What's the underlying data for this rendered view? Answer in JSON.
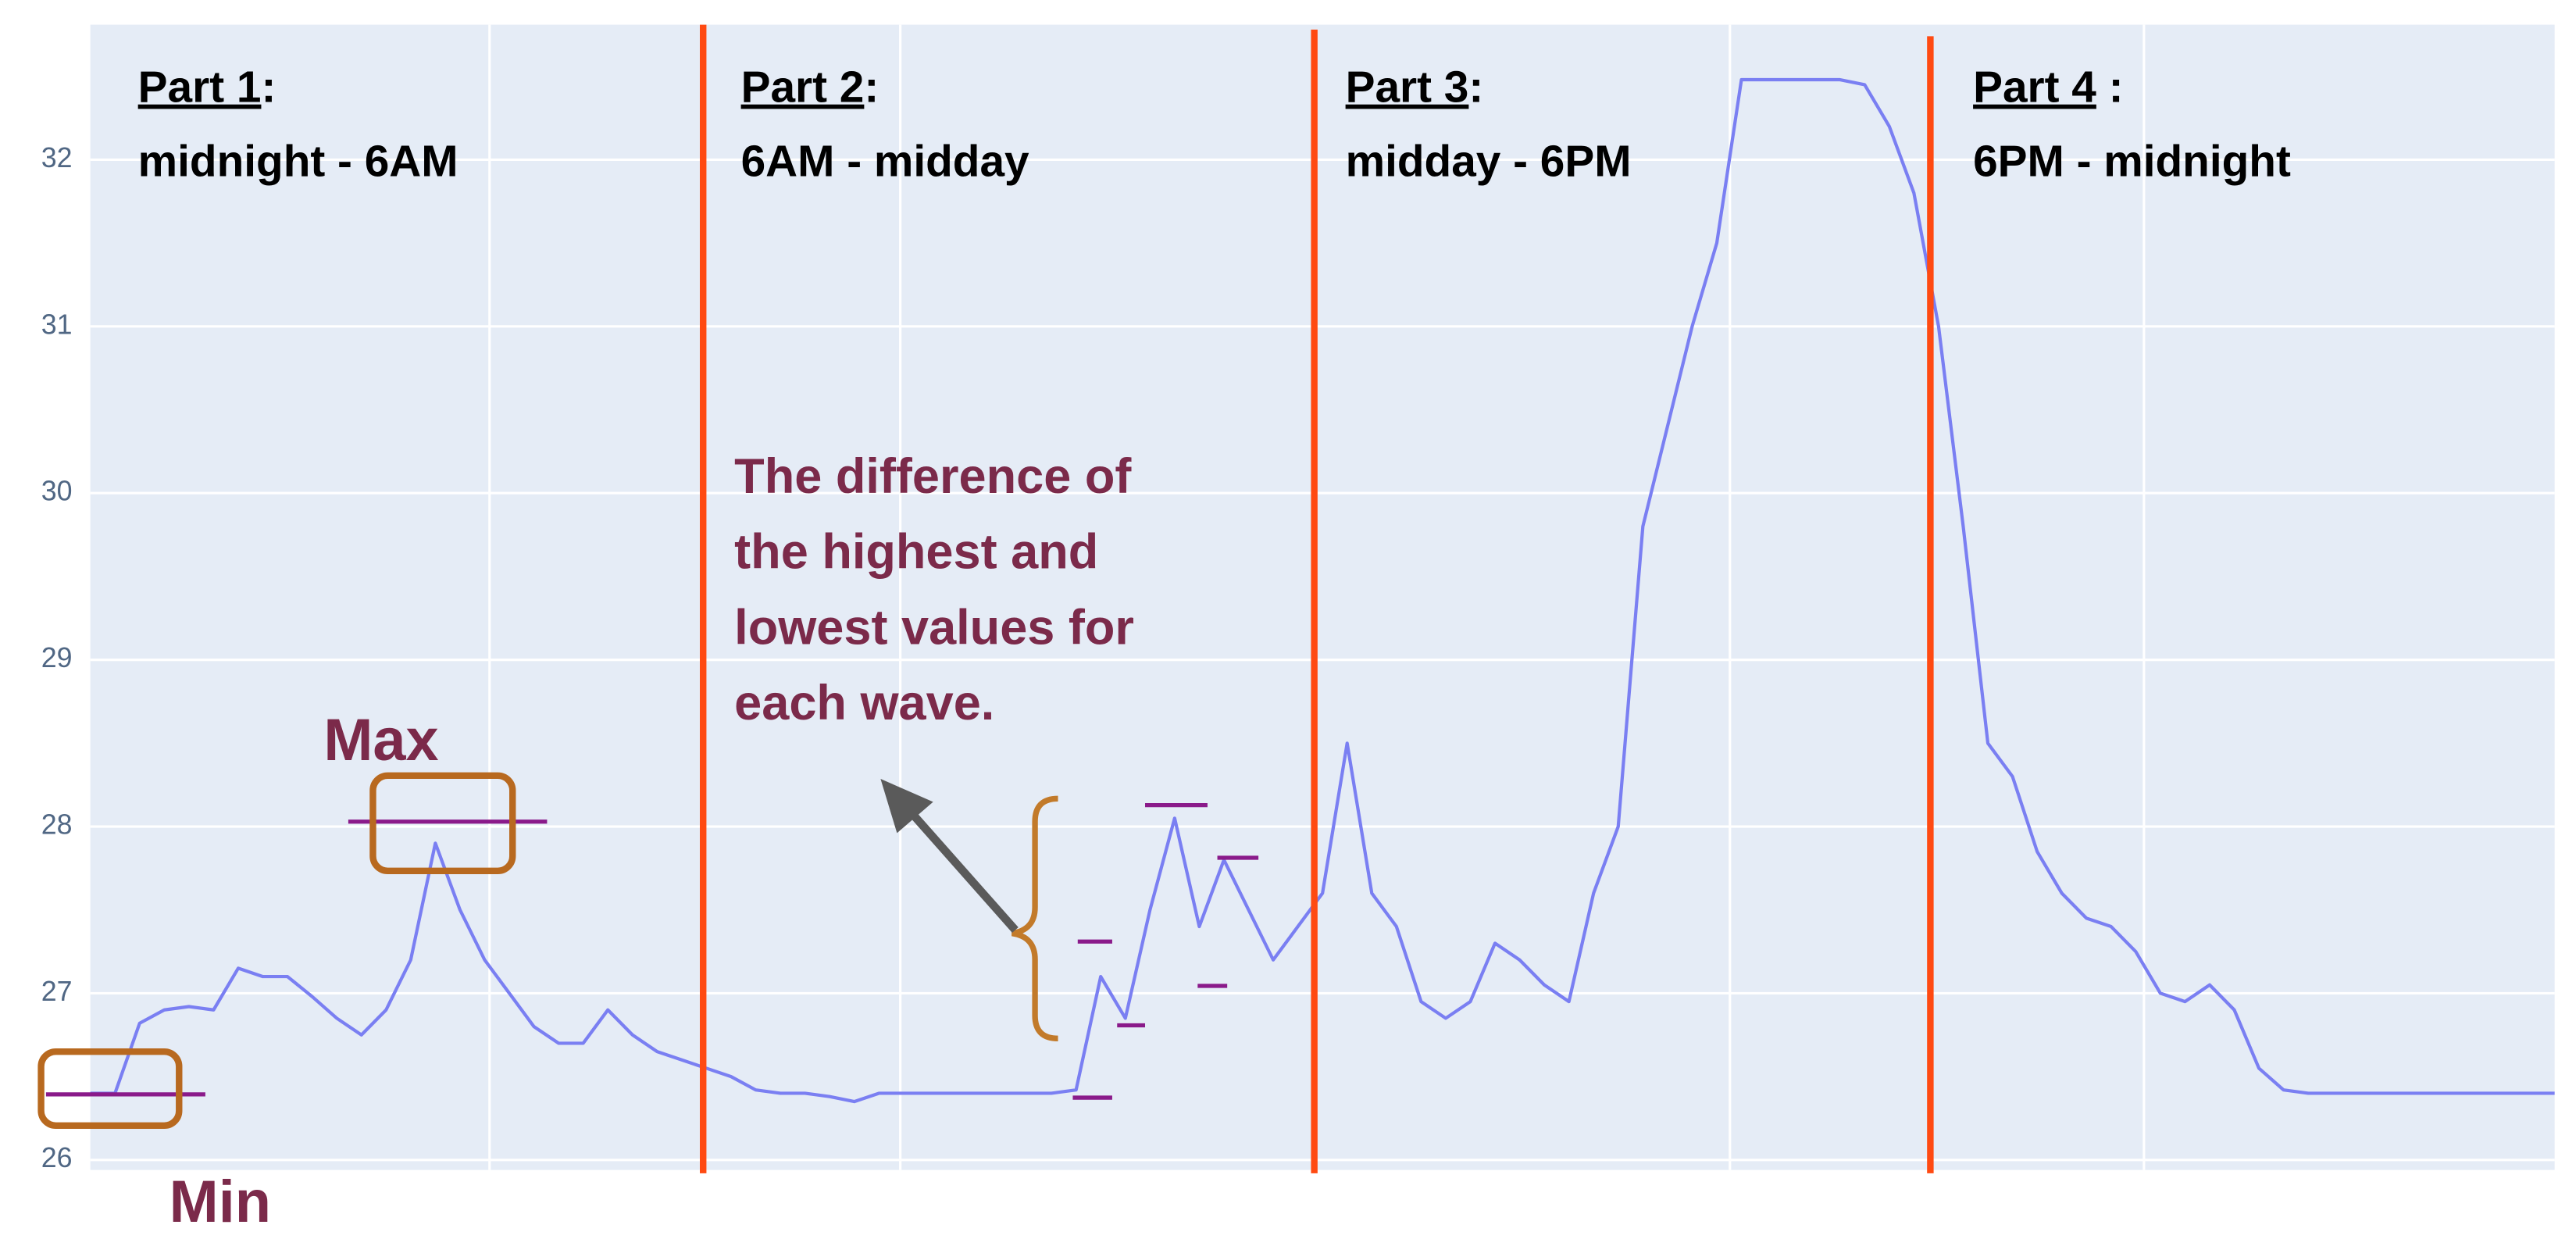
{
  "chart_data": {
    "type": "line",
    "color": "#7a7ff2",
    "ylim": [
      25.94,
      32.81
    ],
    "yticks": [
      26,
      27,
      28,
      29,
      30,
      31,
      32
    ],
    "grid": true,
    "values": [
      26.4,
      26.4,
      26.82,
      26.9,
      26.92,
      26.9,
      27.15,
      27.1,
      27.1,
      26.98,
      26.85,
      26.75,
      26.9,
      27.2,
      27.9,
      27.5,
      27.2,
      27.0,
      26.8,
      26.7,
      26.7,
      26.9,
      26.75,
      26.65,
      26.6,
      26.55,
      26.5,
      26.42,
      26.4,
      26.4,
      26.38,
      26.35,
      26.4,
      26.4,
      26.4,
      26.4,
      26.4,
      26.4,
      26.4,
      26.4,
      26.42,
      27.1,
      26.85,
      27.5,
      28.05,
      27.4,
      27.8,
      27.5,
      27.2,
      27.4,
      27.6,
      28.5,
      27.6,
      27.4,
      26.95,
      26.85,
      26.95,
      27.3,
      27.2,
      27.05,
      26.95,
      27.6,
      28.0,
      29.8,
      30.4,
      31.0,
      31.5,
      32.48,
      32.48,
      32.48,
      32.48,
      32.48,
      32.45,
      32.2,
      31.8,
      31.0,
      29.8,
      28.5,
      28.3,
      27.85,
      27.6,
      27.45,
      27.4,
      27.25,
      27.0,
      26.95,
      27.05,
      26.9,
      26.55,
      26.42,
      26.4,
      26.4,
      26.4,
      26.4,
      26.4,
      26.4,
      26.4,
      26.4,
      26.4,
      26.4,
      26.4
    ],
    "parts": [
      {
        "name": "Part 1",
        "sep": ":",
        "range": "midnight - 6AM"
      },
      {
        "name": "Part 2",
        "sep": ":",
        "range": "6AM - midday"
      },
      {
        "name": "Part 3",
        "sep": ":",
        "range": "midday - 6PM"
      },
      {
        "name": "Part 4",
        "sep": " :",
        "range": "6PM - midnight"
      }
    ],
    "max_label": "Max",
    "min_label": "Min",
    "note": [
      "The difference of",
      "the highest and",
      "lowest values for",
      "each wave."
    ]
  }
}
